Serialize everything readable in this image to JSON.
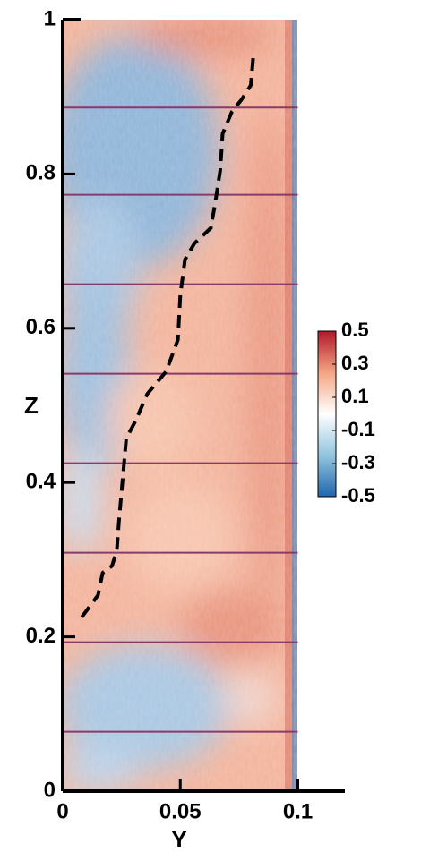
{
  "chart_data": {
    "type": "contour",
    "xlabel": "Y",
    "ylabel": "Z",
    "xlim": [
      0,
      0.12
    ],
    "ylim": [
      0,
      1
    ],
    "xticks": [
      0,
      0.05,
      0.1
    ],
    "yticks": [
      0,
      0.2,
      0.4,
      0.6,
      0.8,
      1
    ],
    "line": {
      "color": "#000000",
      "x": [
        0.081,
        0.08,
        0.076,
        0.072,
        0.068,
        0.067,
        0.065,
        0.063,
        0.056,
        0.052,
        0.05,
        0.049,
        0.044,
        0.036,
        0.031,
        0.027,
        0.026,
        0.024,
        0.023,
        0.021,
        0.017,
        0.015,
        0.008
      ],
      "values": [
        0.95,
        0.915,
        0.896,
        0.881,
        0.852,
        0.805,
        0.765,
        0.73,
        0.71,
        0.689,
        0.643,
        0.585,
        0.544,
        0.515,
        0.48,
        0.457,
        0.422,
        0.353,
        0.312,
        0.292,
        0.283,
        0.254,
        0.225
      ]
    },
    "hlines": [
      0.886,
      0.773,
      0.657,
      0.541,
      0.425,
      0.309,
      0.193,
      0.077
    ],
    "hline_color": "#8a3a6a",
    "colorbar": {
      "lim": [
        -0.5,
        0.5
      ],
      "ticks": [
        0.5,
        0.3,
        0.1,
        -0.1,
        -0.3,
        -0.5
      ],
      "colors": [
        "#2166ac",
        "#92c5de",
        "#ffffff",
        "#f4a582",
        "#b2182b"
      ]
    }
  }
}
